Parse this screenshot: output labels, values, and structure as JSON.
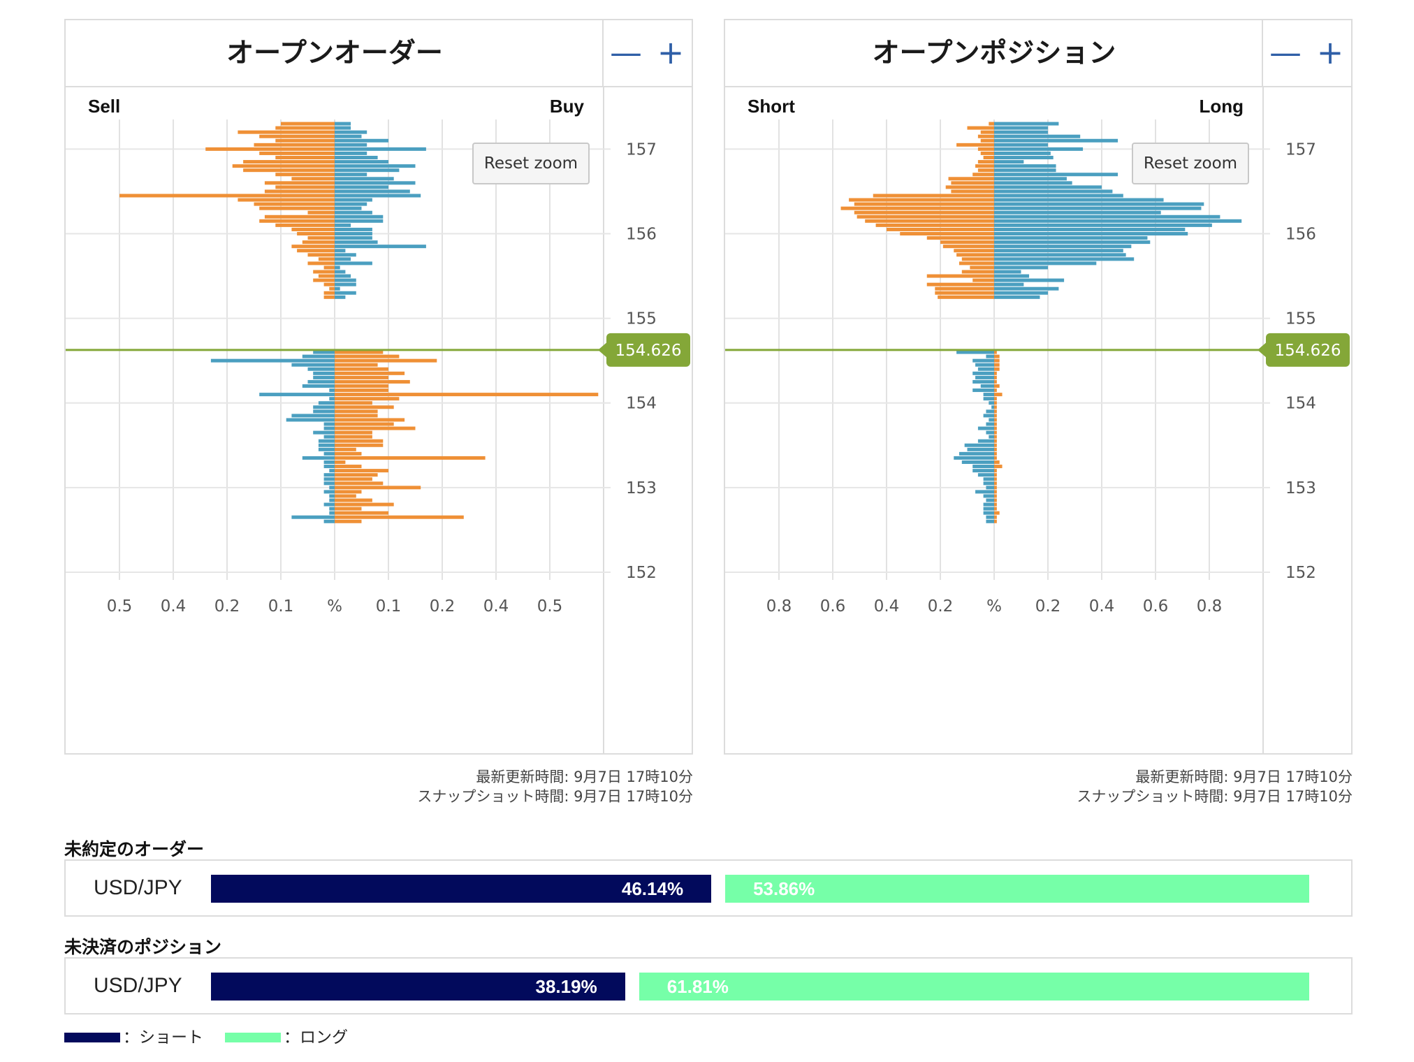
{
  "orders_panel": {
    "title": "オープンオーダー",
    "zoom_out": "—",
    "zoom_in": "+",
    "left_label": "Sell",
    "right_label": "Buy",
    "reset_zoom": "Reset zoom",
    "update_time": "最新更新時間: 9月7日 17時10分",
    "snapshot_time": "スナップショット時間: 9月7日 17時10分"
  },
  "positions_panel": {
    "title": "オープンポジション",
    "zoom_out": "—",
    "zoom_in": "+",
    "left_label": "Short",
    "right_label": "Long",
    "reset_zoom": "Reset zoom",
    "update_time": "最新更新時間: 9月7日 17時10分",
    "snapshot_time": "スナップショット時間: 9月7日 17時10分"
  },
  "colors": {
    "orange": "#ef9036",
    "blue": "#4b9fc0",
    "current_line": "#84a738",
    "short": "#020a5c",
    "long": "#76ffa8"
  },
  "chart_data": [
    {
      "type": "bar",
      "orientation": "horizontal-butterfly",
      "title": "オープンオーダー",
      "left_label": "Sell",
      "right_label": "Buy",
      "x_ticks": [
        "0.5",
        "0.4",
        "0.2",
        "0.1",
        "%",
        "0.1",
        "0.2",
        "0.4",
        "0.5"
      ],
      "y_ticks": [
        "157",
        "156",
        "155",
        "154",
        "153",
        "152"
      ],
      "price_range": [
        151.95,
        157.35
      ],
      "x_max": 0.5,
      "current_price": "154.626",
      "price_step": 0.05,
      "upper_prices_start": 157.3,
      "lower_prices_start": 154.6,
      "upper_sell": [
        0.1,
        0.11,
        0.18,
        0.14,
        0.11,
        0.15,
        0.24,
        0.14,
        0.11,
        0.17,
        0.19,
        0.17,
        0.11,
        0.08,
        0.13,
        0.11,
        0.13,
        0.4,
        0.18,
        0.15,
        0.14,
        0.05,
        0.13,
        0.14,
        0.11,
        0.08,
        0.07,
        0.05,
        0.06,
        0.08,
        0.07,
        0.05,
        0.03,
        0.05,
        0.02,
        0.04,
        0.03,
        0.04,
        0.02,
        0.01,
        0.02,
        0.02
      ],
      "upper_buy": [
        0.03,
        0.03,
        0.06,
        0.05,
        0.1,
        0.06,
        0.17,
        0.06,
        0.08,
        0.1,
        0.15,
        0.12,
        0.06,
        0.11,
        0.15,
        0.1,
        0.14,
        0.16,
        0.07,
        0.06,
        0.05,
        0.07,
        0.09,
        0.09,
        0.03,
        0.07,
        0.07,
        0.07,
        0.08,
        0.17,
        0.02,
        0.04,
        0.03,
        0.07,
        0.01,
        0.02,
        0.03,
        0.04,
        0.04,
        0.01,
        0.04,
        0.02
      ],
      "lower_sell": [
        0.04,
        0.06,
        0.23,
        0.08,
        0.05,
        0.04,
        0.04,
        0.05,
        0.06,
        0.01,
        0.14,
        0.01,
        0.03,
        0.04,
        0.04,
        0.08,
        0.09,
        0.02,
        0.02,
        0.04,
        0.02,
        0.03,
        0.03,
        0.03,
        0.02,
        0.06,
        0.02,
        0.02,
        0.01,
        0.02,
        0.02,
        0.02,
        0.01,
        0.02,
        0.01,
        0.01,
        0.02,
        0.01,
        0.01,
        0.08,
        0.02
      ],
      "lower_buy": [
        0.09,
        0.12,
        0.19,
        0.08,
        0.1,
        0.13,
        0.1,
        0.14,
        0.1,
        0.1,
        0.49,
        0.12,
        0.07,
        0.11,
        0.08,
        0.08,
        0.13,
        0.11,
        0.15,
        0.07,
        0.07,
        0.09,
        0.09,
        0.04,
        0.05,
        0.28,
        0.02,
        0.05,
        0.1,
        0.08,
        0.07,
        0.09,
        0.16,
        0.05,
        0.04,
        0.07,
        0.11,
        0.05,
        0.1,
        0.24,
        0.05
      ]
    },
    {
      "type": "bar",
      "orientation": "horizontal-butterfly",
      "title": "オープンポジション",
      "left_label": "Short",
      "right_label": "Long",
      "x_ticks": [
        "0.8",
        "0.6",
        "0.4",
        "0.2",
        "%",
        "0.2",
        "0.4",
        "0.6",
        "0.8"
      ],
      "y_ticks": [
        "157",
        "156",
        "155",
        "154",
        "153",
        "152"
      ],
      "price_range": [
        151.95,
        157.35
      ],
      "x_max": 1.0,
      "current_price": "154.626",
      "price_step": 0.05,
      "upper_prices_start": 157.3,
      "lower_prices_start": 154.6,
      "upper_short": [
        0.02,
        0.1,
        0.05,
        0.06,
        0.05,
        0.14,
        0.06,
        0.05,
        0.04,
        0.06,
        0.07,
        0.06,
        0.08,
        0.17,
        0.16,
        0.18,
        0.16,
        0.45,
        0.54,
        0.52,
        0.57,
        0.52,
        0.51,
        0.48,
        0.44,
        0.4,
        0.35,
        0.25,
        0.2,
        0.19,
        0.15,
        0.14,
        0.12,
        0.13,
        0.09,
        0.12,
        0.25,
        0.08,
        0.25,
        0.22,
        0.22,
        0.21
      ],
      "upper_long": [
        0.24,
        0.2,
        0.2,
        0.32,
        0.46,
        0.2,
        0.33,
        0.21,
        0.22,
        0.11,
        0.23,
        0.23,
        0.46,
        0.27,
        0.29,
        0.4,
        0.44,
        0.48,
        0.63,
        0.78,
        0.77,
        0.62,
        0.84,
        0.92,
        0.81,
        0.71,
        0.72,
        0.57,
        0.58,
        0.51,
        0.48,
        0.49,
        0.52,
        0.38,
        0.2,
        0.1,
        0.13,
        0.26,
        0.11,
        0.24,
        0.2,
        0.17
      ],
      "lower_short": [
        0.14,
        0.03,
        0.08,
        0.07,
        0.06,
        0.08,
        0.07,
        0.08,
        0.05,
        0.08,
        0.04,
        0.04,
        0.02,
        0.01,
        0.03,
        0.04,
        0.02,
        0.03,
        0.06,
        0.03,
        0.02,
        0.06,
        0.11,
        0.1,
        0.13,
        0.15,
        0.12,
        0.08,
        0.08,
        0.06,
        0.04,
        0.04,
        0.03,
        0.07,
        0.04,
        0.03,
        0.04,
        0.04,
        0.04,
        0.03,
        0.03
      ],
      "lower_long": [
        0.01,
        0.02,
        0.02,
        0.02,
        0.02,
        0.01,
        0.01,
        0.01,
        0.02,
        0.01,
        0.03,
        0.01,
        0.01,
        0.01,
        0.01,
        0.01,
        0.01,
        0.01,
        0.01,
        0.01,
        0.01,
        0.01,
        0.01,
        0.01,
        0.01,
        0.01,
        0.02,
        0.03,
        0.01,
        0.01,
        0.01,
        0.01,
        0.01,
        0.01,
        0.01,
        0.01,
        0.01,
        0.01,
        0.02,
        0.01,
        0.01
      ]
    }
  ],
  "ratio_section": {
    "orders_title": "未約定のオーダー",
    "positions_title": "未決済のポジション",
    "orders": {
      "pair": "USD/JPY",
      "short_pct": 46.14,
      "long_pct": 53.86,
      "short_text": "46.14%",
      "long_text": "53.86%"
    },
    "positions": {
      "pair": "USD/JPY",
      "short_pct": 38.19,
      "long_pct": 61.81,
      "short_text": "38.19%",
      "long_text": "61.81%"
    }
  },
  "legend": {
    "short_label": "：ショート",
    "long_label": "：ロング"
  }
}
